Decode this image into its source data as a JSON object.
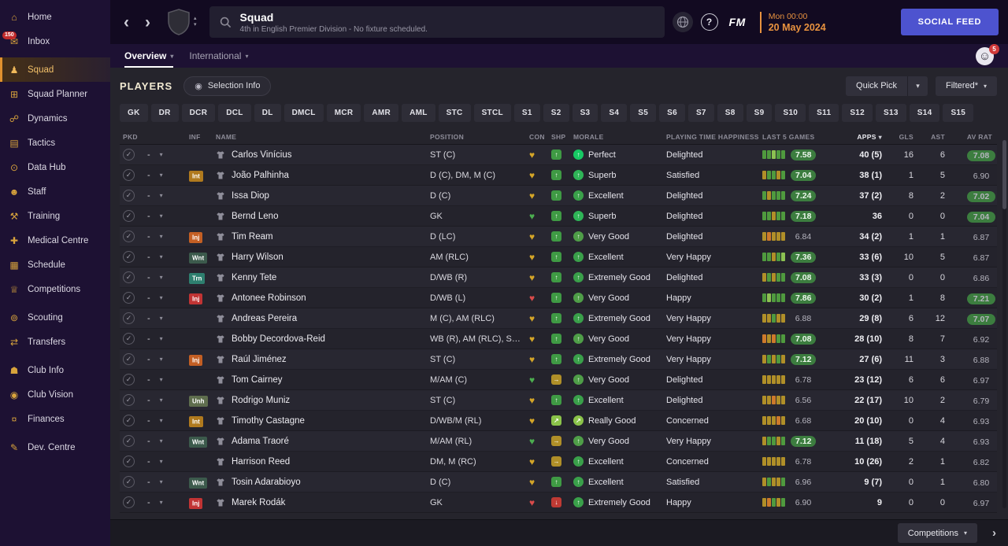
{
  "colors": {
    "accent_orange": "#e8923f",
    "sidebar_gold": "#d8a33c",
    "social_feed_blue": "#4d53cf",
    "rating_green": "#3c7d3f",
    "morale_green": "#3aa04a",
    "injury_red": "#c13434"
  },
  "icons": {
    "back": "‹",
    "forward": "›",
    "caret_down": "▾",
    "caret_up": "▴",
    "check": "✓",
    "dash": "-",
    "heart": "♥",
    "question": "?",
    "selection": "◉",
    "sort": "▾",
    "face": "☺",
    "chevron_right": "›",
    "arrow_up": "↑",
    "arrow_upright": "↗",
    "arrow_flat": "→",
    "arrow_down": "↓"
  },
  "sidebar": {
    "items": [
      {
        "id": "home",
        "label": "Home",
        "glyph": "⌂"
      },
      {
        "id": "inbox",
        "label": "Inbox",
        "glyph": "✉",
        "badge": "150"
      },
      {
        "id": "squad",
        "label": "Squad",
        "glyph": "♟",
        "active": true,
        "gap": true
      },
      {
        "id": "squad-planner",
        "label": "Squad Planner",
        "glyph": "⊞"
      },
      {
        "id": "dynamics",
        "label": "Dynamics",
        "glyph": "☍"
      },
      {
        "id": "tactics",
        "label": "Tactics",
        "glyph": "▤"
      },
      {
        "id": "data-hub",
        "label": "Data Hub",
        "glyph": "⊙"
      },
      {
        "id": "staff",
        "label": "Staff",
        "glyph": "☻"
      },
      {
        "id": "training",
        "label": "Training",
        "glyph": "⚒"
      },
      {
        "id": "medical-centre",
        "label": "Medical Centre",
        "glyph": "✚"
      },
      {
        "id": "schedule",
        "label": "Schedule",
        "glyph": "▦"
      },
      {
        "id": "competitions",
        "label": "Competitions",
        "glyph": "♕"
      },
      {
        "id": "scouting",
        "label": "Scouting",
        "glyph": "⊚",
        "gap": true
      },
      {
        "id": "transfers",
        "label": "Transfers",
        "glyph": "⇄"
      },
      {
        "id": "club-info",
        "label": "Club Info",
        "glyph": "☗",
        "gap": true
      },
      {
        "id": "club-vision",
        "label": "Club Vision",
        "glyph": "◉"
      },
      {
        "id": "finances",
        "label": "Finances",
        "glyph": "¤"
      },
      {
        "id": "dev-centre",
        "label": "Dev. Centre",
        "glyph": "✎",
        "gap": true
      }
    ]
  },
  "header": {
    "title": "Squad",
    "subtitle": "4th in English Premier Division - No fixture scheduled.",
    "fm_logo": "FM",
    "time": "Mon 00:00",
    "date": "20 May 2024",
    "social_feed": "SOCIAL FEED"
  },
  "subnav": {
    "tabs": [
      {
        "label": "Overview",
        "active": true
      },
      {
        "label": "International",
        "active": false
      }
    ],
    "avatar_badge": "5"
  },
  "players_bar": {
    "title": "PLAYERS",
    "selection_info": "Selection Info",
    "quick_pick": "Quick Pick",
    "filtered": "Filtered*"
  },
  "filters": [
    "GK",
    "DR",
    "DCR",
    "DCL",
    "DL",
    "DMCL",
    "MCR",
    "AMR",
    "AML",
    "STC",
    "STCL",
    "S1",
    "S2",
    "S3",
    "S4",
    "S5",
    "S6",
    "S7",
    "S8",
    "S9",
    "S10",
    "S11",
    "S12",
    "S13",
    "S14",
    "S15"
  ],
  "table": {
    "columns": [
      {
        "key": "pkd",
        "label": "PKD"
      },
      {
        "key": "inf",
        "label": "INF"
      },
      {
        "key": "name",
        "label": "NAME"
      },
      {
        "key": "position",
        "label": "POSITION"
      },
      {
        "key": "con",
        "label": "CON"
      },
      {
        "key": "shp",
        "label": "SHP"
      },
      {
        "key": "morale",
        "label": "MORALE"
      },
      {
        "key": "playing-time-happiness",
        "label": "PLAYING TIME HAPPINESS"
      },
      {
        "key": "last-5-games",
        "label": "LAST 5 GAMES"
      },
      {
        "key": "apps",
        "label": "APPS",
        "align": "right",
        "sorted": true
      },
      {
        "key": "gls",
        "label": "GLS",
        "align": "right"
      },
      {
        "key": "ast",
        "label": "AST",
        "align": "right"
      },
      {
        "key": "av-rat",
        "label": "AV RAT",
        "align": "right"
      }
    ],
    "rows": [
      {
        "name": "Carlos Vinícius",
        "pos": "ST (C)",
        "inf": null,
        "con": "gold",
        "shp": "g",
        "morale": "Perfect",
        "pth": "Delighted",
        "bars": [
          "g",
          "g",
          "lg",
          "g",
          "g"
        ],
        "l5": "7.58",
        "apps": "40 (5)",
        "gls": "16",
        "ast": "6",
        "rat": "7.08"
      },
      {
        "name": "João Palhinha",
        "pos": "D (C), DM, M (C)",
        "inf": {
          "label": "Int",
          "type": "int"
        },
        "con": "gold",
        "shp": "g",
        "morale": "Superb",
        "pth": "Satisfied",
        "bars": [
          "y",
          "g",
          "g",
          "y",
          "g"
        ],
        "l5": "7.04",
        "apps": "38 (1)",
        "gls": "1",
        "ast": "5",
        "rat": "6.90"
      },
      {
        "name": "Issa Diop",
        "pos": "D (C)",
        "inf": null,
        "con": "gold",
        "shp": "g",
        "morale": "Excellent",
        "pth": "Delighted",
        "bars": [
          "g",
          "y",
          "g",
          "g",
          "g"
        ],
        "l5": "7.24",
        "apps": "37 (2)",
        "gls": "8",
        "ast": "2",
        "rat": "7.02"
      },
      {
        "name": "Bernd Leno",
        "pos": "GK",
        "inf": null,
        "con": "green",
        "shp": "g",
        "morale": "Superb",
        "pth": "Delighted",
        "bars": [
          "g",
          "g",
          "y",
          "g",
          "g"
        ],
        "l5": "7.18",
        "apps": "36",
        "gls": "0",
        "ast": "0",
        "rat": "7.04"
      },
      {
        "name": "Tim Ream",
        "pos": "D (LC)",
        "inf": {
          "label": "Inj",
          "type": "inj-minor"
        },
        "con": "gold",
        "shp": "g",
        "morale": "Very Good",
        "pth": "Delighted",
        "bars": [
          "y",
          "o",
          "y",
          "y",
          "y"
        ],
        "l5": "6.84",
        "apps": "34 (2)",
        "gls": "1",
        "ast": "1",
        "rat": "6.87"
      },
      {
        "name": "Harry Wilson",
        "pos": "AM (RLC)",
        "inf": {
          "label": "Wnt",
          "type": "wnt"
        },
        "con": "gold",
        "shp": "g",
        "morale": "Excellent",
        "pth": "Very Happy",
        "bars": [
          "g",
          "g",
          "y",
          "g",
          "lg"
        ],
        "l5": "7.36",
        "apps": "33 (6)",
        "gls": "10",
        "ast": "5",
        "rat": "6.87"
      },
      {
        "name": "Kenny Tete",
        "pos": "D/WB (R)",
        "inf": {
          "label": "Trn",
          "type": "trn"
        },
        "con": "gold",
        "shp": "g",
        "morale": "Extremely Good",
        "pth": "Delighted",
        "bars": [
          "y",
          "g",
          "y",
          "g",
          "g"
        ],
        "l5": "7.08",
        "apps": "33 (3)",
        "gls": "0",
        "ast": "0",
        "rat": "6.86"
      },
      {
        "name": "Antonee Robinson",
        "pos": "D/WB (L)",
        "inf": {
          "label": "Inj",
          "type": "inj-major"
        },
        "con": "red",
        "shp": "g",
        "morale": "Very Good",
        "pth": "Happy",
        "bars": [
          "g",
          "lg",
          "g",
          "g",
          "g"
        ],
        "l5": "7.86",
        "apps": "30 (2)",
        "gls": "1",
        "ast": "8",
        "rat": "7.21"
      },
      {
        "name": "Andreas Pereira",
        "pos": "M (C), AM (RLC)",
        "inf": null,
        "con": "gold",
        "shp": "g",
        "morale": "Extremely Good",
        "pth": "Very Happy",
        "bars": [
          "y",
          "y",
          "g",
          "y",
          "y"
        ],
        "l5": "6.88",
        "apps": "29 (8)",
        "gls": "6",
        "ast": "12",
        "rat": "7.07"
      },
      {
        "name": "Bobby Decordova-Reid",
        "pos": "WB (R), AM (RLC), ST…",
        "inf": null,
        "con": "gold",
        "shp": "g",
        "morale": "Very Good",
        "pth": "Very Happy",
        "bars": [
          "o",
          "y",
          "o",
          "g",
          "g"
        ],
        "l5": "7.08",
        "apps": "28 (10)",
        "gls": "8",
        "ast": "7",
        "rat": "6.92"
      },
      {
        "name": "Raúl Jiménez",
        "pos": "ST (C)",
        "inf": {
          "label": "Inj",
          "type": "inj-minor"
        },
        "con": "gold",
        "shp": "g",
        "morale": "Extremely Good",
        "pth": "Very Happy",
        "bars": [
          "y",
          "g",
          "y",
          "g",
          "y"
        ],
        "l5": "7.12",
        "apps": "27 (6)",
        "gls": "11",
        "ast": "3",
        "rat": "6.88"
      },
      {
        "name": "Tom Cairney",
        "pos": "M/AM (C)",
        "inf": null,
        "con": "green",
        "shp": "y",
        "morale": "Very Good",
        "pth": "Delighted",
        "bars": [
          "y",
          "y",
          "y",
          "y",
          "y"
        ],
        "l5": "6.78",
        "apps": "23 (12)",
        "gls": "6",
        "ast": "6",
        "rat": "6.97"
      },
      {
        "name": "Rodrigo Muniz",
        "pos": "ST (C)",
        "inf": {
          "label": "Unh",
          "type": "unh"
        },
        "con": "gold",
        "shp": "g",
        "morale": "Excellent",
        "pth": "Delighted",
        "bars": [
          "y",
          "y",
          "o",
          "y",
          "y"
        ],
        "l5": "6.56",
        "apps": "22 (17)",
        "gls": "10",
        "ast": "2",
        "rat": "6.79"
      },
      {
        "name": "Timothy Castagne",
        "pos": "D/WB/M (RL)",
        "inf": {
          "label": "Int",
          "type": "int"
        },
        "con": "gold",
        "shp": "lg",
        "morale": "Really Good",
        "pth": "Concerned",
        "bars": [
          "y",
          "y",
          "y",
          "o",
          "y"
        ],
        "l5": "6.68",
        "apps": "20 (10)",
        "gls": "0",
        "ast": "4",
        "rat": "6.93"
      },
      {
        "name": "Adama Traoré",
        "pos": "M/AM (RL)",
        "inf": {
          "label": "Wnt",
          "type": "wnt"
        },
        "con": "green",
        "shp": "y",
        "morale": "Very Good",
        "pth": "Very Happy",
        "bars": [
          "y",
          "g",
          "g",
          "y",
          "g"
        ],
        "l5": "7.12",
        "apps": "11 (18)",
        "gls": "5",
        "ast": "4",
        "rat": "6.93"
      },
      {
        "name": "Harrison Reed",
        "pos": "DM, M (RC)",
        "inf": null,
        "con": "gold",
        "shp": "y",
        "morale": "Excellent",
        "pth": "Concerned",
        "bars": [
          "y",
          "y",
          "y",
          "y",
          "y"
        ],
        "l5": "6.78",
        "apps": "10 (26)",
        "gls": "2",
        "ast": "1",
        "rat": "6.82"
      },
      {
        "name": "Tosin Adarabioyo",
        "pos": "D (C)",
        "inf": {
          "label": "Wnt",
          "type": "wnt"
        },
        "con": "gold",
        "shp": "g",
        "morale": "Excellent",
        "pth": "Satisfied",
        "bars": [
          "y",
          "g",
          "y",
          "y",
          "g"
        ],
        "l5": "6.96",
        "apps": "9 (7)",
        "gls": "0",
        "ast": "1",
        "rat": "6.80"
      },
      {
        "name": "Marek Rodák",
        "pos": "GK",
        "inf": {
          "label": "Inj",
          "type": "inj-major"
        },
        "con": "red",
        "shp": "r",
        "morale": "Extremely Good",
        "pth": "Happy",
        "bars": [
          "y",
          "o",
          "g",
          "y",
          "g"
        ],
        "l5": "6.90",
        "apps": "9",
        "gls": "0",
        "ast": "0",
        "rat": "6.97"
      }
    ]
  },
  "footer": {
    "competitions": "Competitions"
  }
}
